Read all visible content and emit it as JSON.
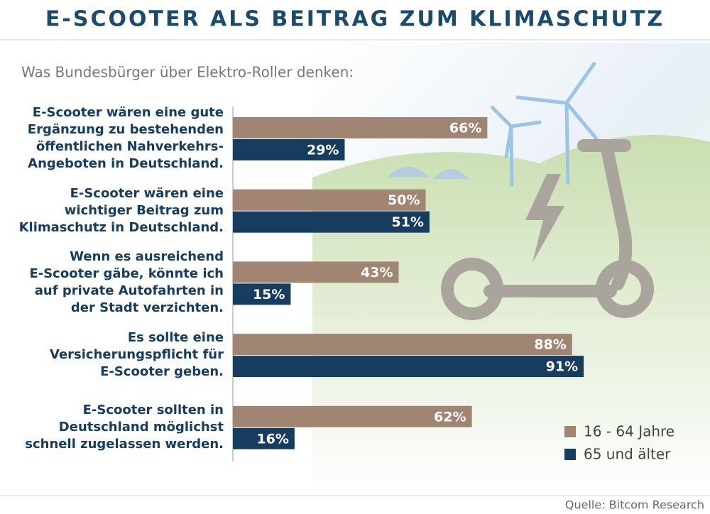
{
  "chart_data": {
    "type": "hbar",
    "title": "E-SCOOTER ALS BEITRAG ZUM KLIMASCHUTZ",
    "subtitle": "Was Bundesbürger über Elektro-Roller denken:",
    "categories": [
      "E-Scooter wären eine gute\nErgänzung zu bestehenden\nöffentlichen Nahverkehrs-\nAngeboten in Deutschland.",
      "E-Scooter wären eine\nwichtiger Beitrag zum\nKlimaschutz in Deutschland.",
      "Wenn es ausreichend\nE-Scooter gäbe, könnte ich\nauf private Autofahrten in\nder Stadt verzichten.",
      "Es sollte eine\nVersicherungspflicht für\nE-Scooter geben.",
      "E-Scooter sollten in\nDeutschland möglichst\nschnell zugelassen werden."
    ],
    "series": [
      {
        "name": "16 - 64 Jahre",
        "color": "#a08672",
        "values": [
          66,
          50,
          43,
          88,
          62
        ],
        "value_labels": [
          "66%",
          "50%",
          "43%",
          "88%",
          "62%"
        ]
      },
      {
        "name": "65 und älter",
        "color": "#163d60",
        "values": [
          29,
          51,
          15,
          91,
          16
        ],
        "value_labels": [
          "29%",
          "51%",
          "15%",
          "91%",
          "16%"
        ]
      }
    ],
    "xlim": [
      0,
      100
    ],
    "legend": "bottom-right",
    "source": "Quelle: Bitcom Research"
  }
}
